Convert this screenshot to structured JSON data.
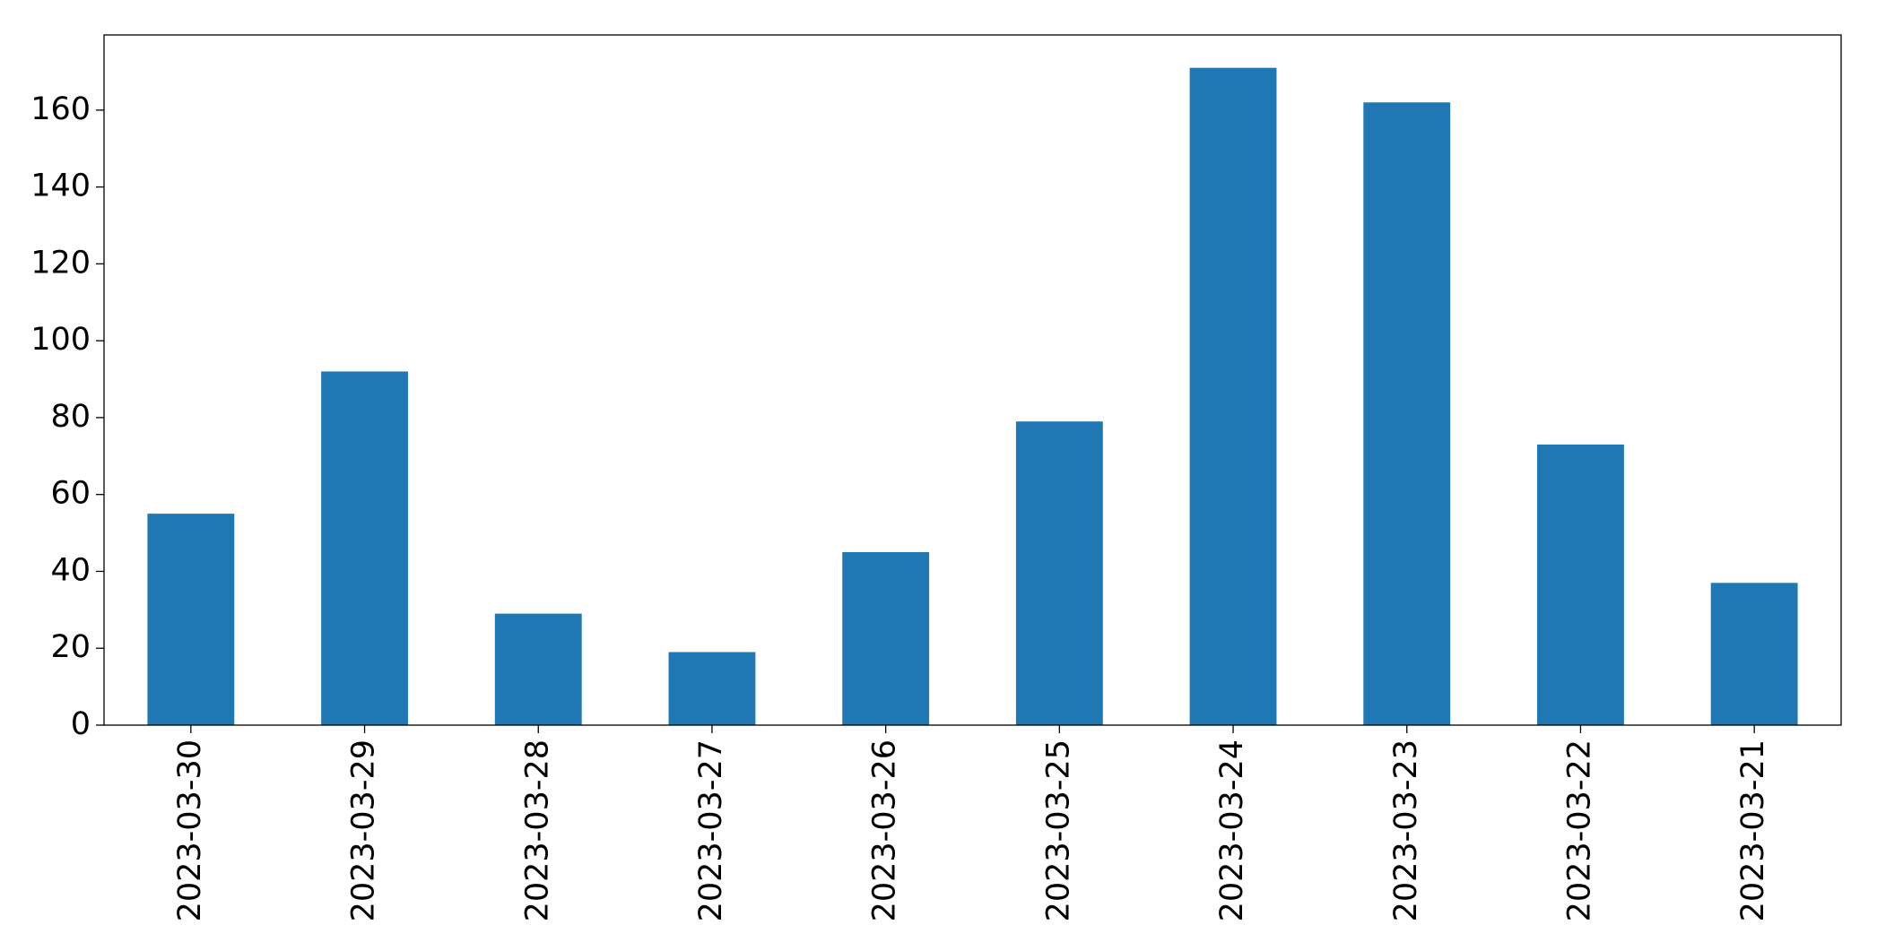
{
  "chart_data": {
    "type": "bar",
    "categories": [
      "2023-03-30",
      "2023-03-29",
      "2023-03-28",
      "2023-03-27",
      "2023-03-26",
      "2023-03-25",
      "2023-03-24",
      "2023-03-23",
      "2023-03-22",
      "2023-03-21"
    ],
    "values": [
      55,
      92,
      29,
      19,
      45,
      79,
      171,
      162,
      73,
      37
    ],
    "color": "#1f77b4",
    "ylim": [
      0,
      179.55
    ],
    "yticks": [
      0,
      20,
      40,
      60,
      80,
      100,
      120,
      140,
      160
    ],
    "grid": false
  }
}
